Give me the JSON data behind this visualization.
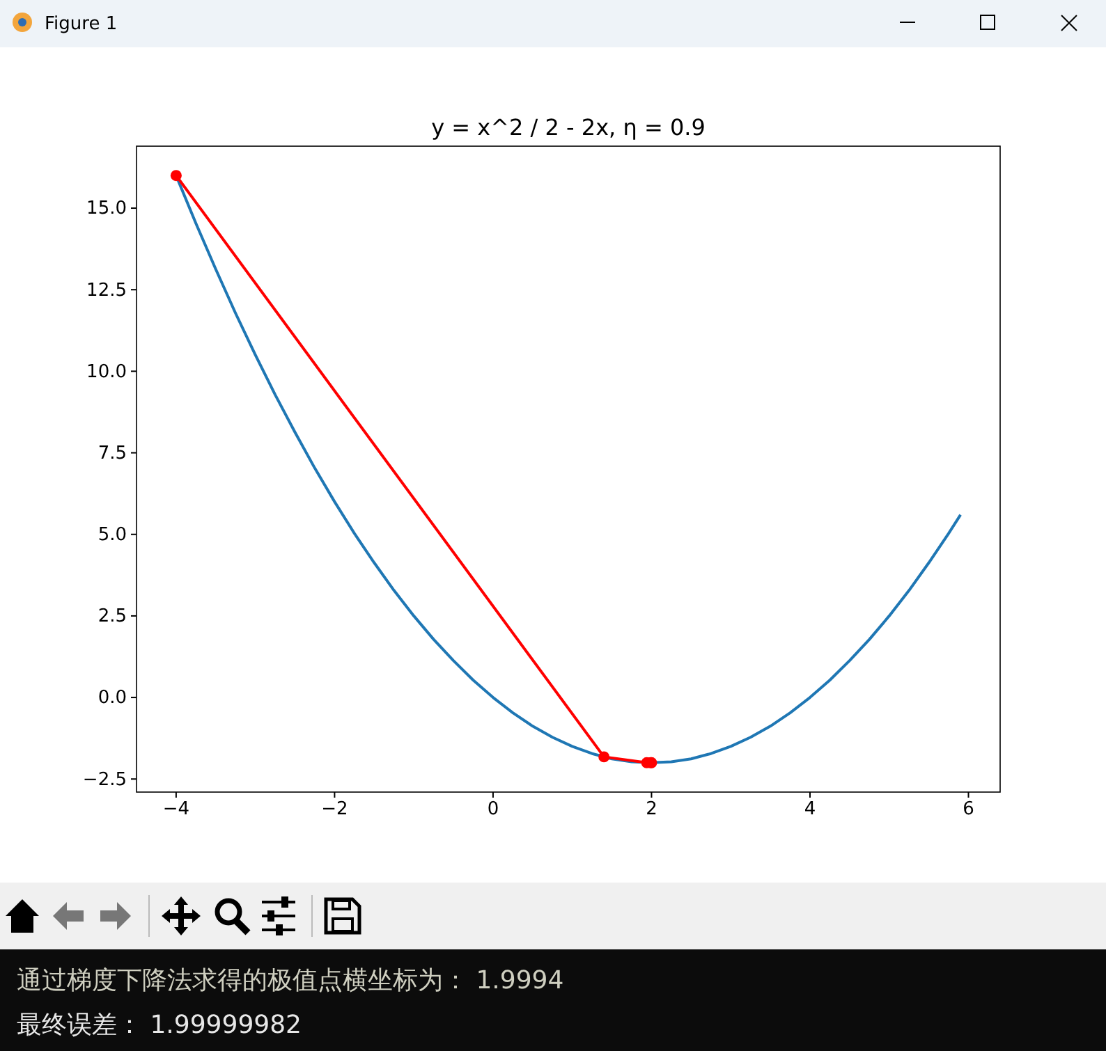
{
  "chart_data": {
    "type": "line",
    "title": "y = x^2 / 2 - 2x, η = 0.9",
    "series": [
      {
        "color": "#1f77b4",
        "marker": "none",
        "x": [
          -4,
          -3.75,
          -3.5,
          -3.25,
          -3,
          -2.75,
          -2.5,
          -2.25,
          -2,
          -1.75,
          -1.5,
          -1.25,
          -1,
          -0.75,
          -0.5,
          -0.25,
          0,
          0.25,
          0.5,
          0.75,
          1,
          1.25,
          1.5,
          1.75,
          2,
          2.25,
          2.5,
          2.75,
          3,
          3.25,
          3.5,
          3.75,
          4,
          4.25,
          4.5,
          4.75,
          5,
          5.25,
          5.5,
          5.75,
          5.9
        ],
        "values": [
          16,
          14.53,
          13.13,
          11.78,
          10.5,
          9.28,
          8.13,
          7.03,
          6,
          5.03,
          4.13,
          3.28,
          2.5,
          1.78,
          1.13,
          0.53,
          0,
          -0.47,
          -0.88,
          -1.22,
          -1.5,
          -1.72,
          -1.88,
          -1.97,
          -2,
          -1.97,
          -1.88,
          -1.72,
          -1.5,
          -1.22,
          -0.88,
          -0.47,
          0,
          0.53,
          1.13,
          1.78,
          2.5,
          3.28,
          4.13,
          5.03,
          5.6
        ]
      },
      {
        "color": "#ff0000",
        "marker": "circle",
        "x": [
          -4,
          1.4,
          1.94,
          1.99,
          2.0
        ],
        "values": [
          16,
          -1.82,
          -2,
          -2,
          -2
        ]
      }
    ],
    "xlim": [
      -4.5,
      6.4
    ],
    "ylim": [
      -2.9,
      16.9
    ],
    "xticks": [
      -4,
      -2,
      0,
      2,
      4,
      6
    ],
    "yticks": [
      {
        "value": -2.5,
        "label": "−2.5"
      },
      {
        "value": 0,
        "label": "0.0"
      },
      {
        "value": 2.5,
        "label": "2.5"
      },
      {
        "value": 5,
        "label": "5.0"
      },
      {
        "value": 7.5,
        "label": "7.5"
      },
      {
        "value": 10,
        "label": "10.0"
      },
      {
        "value": 12.5,
        "label": "12.5"
      },
      {
        "value": 15,
        "label": "15.0"
      }
    ],
    "grid": false,
    "line_style": "solid",
    "annotations": [
      "Figure 1",
      "通过梯度下降法求得的极值点横坐标为：  1.9994",
      "最终误差：  1.99999982"
    ]
  }
}
